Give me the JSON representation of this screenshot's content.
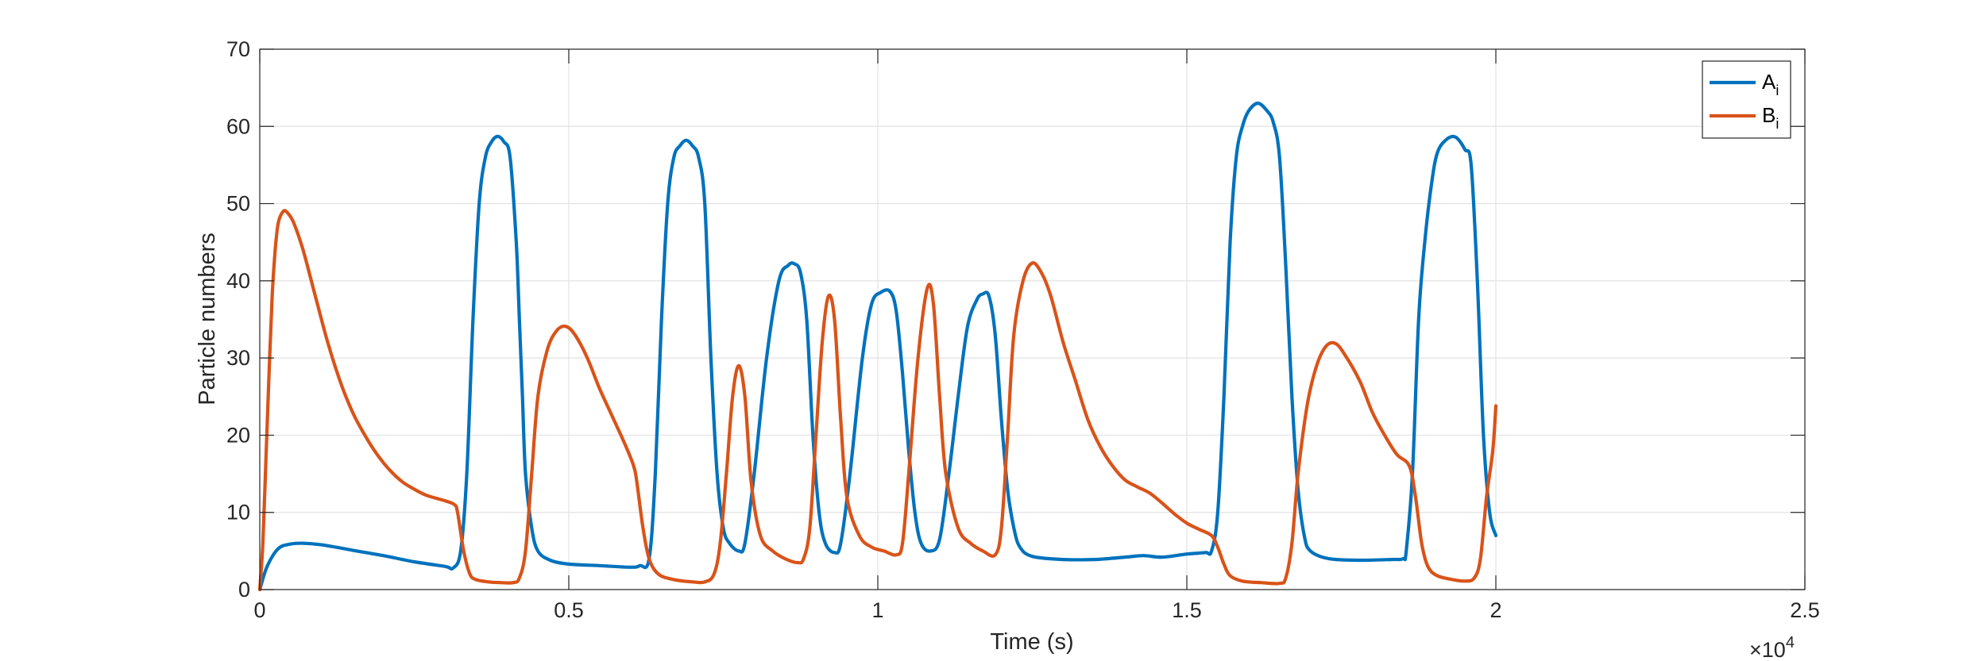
{
  "chart_data": {
    "type": "line",
    "xlabel": "Time (s)",
    "ylabel": "Particle numbers",
    "x_exponent_base": "×10",
    "x_exponent_power": "4",
    "x_scale_factor": 10000,
    "xlim": [
      0,
      25000
    ],
    "ylim": [
      0,
      70
    ],
    "x_ticks": [
      0,
      5000,
      10000,
      15000,
      20000,
      25000
    ],
    "x_tick_labels": [
      "0",
      "0.5",
      "1",
      "1.5",
      "2",
      "2.5"
    ],
    "y_ticks": [
      0,
      10,
      20,
      30,
      40,
      50,
      60,
      70
    ],
    "y_tick_labels": [
      "0",
      "10",
      "20",
      "30",
      "40",
      "50",
      "60",
      "70"
    ],
    "grid": true,
    "legend_position": "top-right",
    "series": [
      {
        "name": "A",
        "subscript": "i",
        "color": "#0072BD",
        "points": [
          [
            0,
            0
          ],
          [
            120,
            3
          ],
          [
            300,
            5.3
          ],
          [
            500,
            5.9
          ],
          [
            700,
            6.0
          ],
          [
            1000,
            5.8
          ],
          [
            1500,
            5.1
          ],
          [
            2000,
            4.4
          ],
          [
            2500,
            3.6
          ],
          [
            3000,
            3.0
          ],
          [
            3130,
            2.8
          ],
          [
            3250,
            5
          ],
          [
            3350,
            15
          ],
          [
            3450,
            35
          ],
          [
            3550,
            50
          ],
          [
            3650,
            56
          ],
          [
            3750,
            58
          ],
          [
            3850,
            58.7
          ],
          [
            3950,
            58
          ],
          [
            4050,
            56
          ],
          [
            4150,
            45
          ],
          [
            4200,
            35
          ],
          [
            4250,
            25
          ],
          [
            4300,
            15
          ],
          [
            4400,
            8
          ],
          [
            4500,
            5
          ],
          [
            4700,
            3.8
          ],
          [
            5000,
            3.3
          ],
          [
            5500,
            3.1
          ],
          [
            6000,
            2.9
          ],
          [
            6150,
            3.1
          ],
          [
            6300,
            4
          ],
          [
            6400,
            15
          ],
          [
            6500,
            35
          ],
          [
            6600,
            50
          ],
          [
            6700,
            56
          ],
          [
            6800,
            57.5
          ],
          [
            6900,
            58.2
          ],
          [
            7000,
            57.5
          ],
          [
            7100,
            56
          ],
          [
            7200,
            50
          ],
          [
            7300,
            30
          ],
          [
            7400,
            15
          ],
          [
            7500,
            8
          ],
          [
            7600,
            6
          ],
          [
            7750,
            5
          ],
          [
            7850,
            6
          ],
          [
            8000,
            15
          ],
          [
            8200,
            30
          ],
          [
            8400,
            40
          ],
          [
            8550,
            42
          ],
          [
            8650,
            42.2
          ],
          [
            8750,
            41
          ],
          [
            8850,
            35
          ],
          [
            8950,
            20
          ],
          [
            9050,
            10
          ],
          [
            9150,
            6
          ],
          [
            9300,
            4.8
          ],
          [
            9400,
            6
          ],
          [
            9550,
            15
          ],
          [
            9750,
            30
          ],
          [
            9900,
            37
          ],
          [
            10050,
            38.5
          ],
          [
            10200,
            38.6
          ],
          [
            10300,
            36
          ],
          [
            10400,
            28
          ],
          [
            10500,
            18
          ],
          [
            10600,
            10
          ],
          [
            10700,
            6
          ],
          [
            10850,
            5
          ],
          [
            11000,
            6.5
          ],
          [
            11150,
            15
          ],
          [
            11300,
            25
          ],
          [
            11450,
            34
          ],
          [
            11600,
            37.5
          ],
          [
            11700,
            38.3
          ],
          [
            11800,
            38
          ],
          [
            11900,
            33
          ],
          [
            12000,
            22
          ],
          [
            12100,
            13
          ],
          [
            12200,
            8
          ],
          [
            12300,
            5.5
          ],
          [
            12500,
            4.3
          ],
          [
            13000,
            3.9
          ],
          [
            13500,
            3.9
          ],
          [
            14000,
            4.2
          ],
          [
            14300,
            4.4
          ],
          [
            14600,
            4.2
          ],
          [
            15000,
            4.6
          ],
          [
            15300,
            4.8
          ],
          [
            15400,
            5
          ],
          [
            15500,
            10
          ],
          [
            15600,
            25
          ],
          [
            15700,
            45
          ],
          [
            15800,
            56
          ],
          [
            15900,
            60
          ],
          [
            16000,
            62
          ],
          [
            16150,
            63
          ],
          [
            16300,
            62
          ],
          [
            16400,
            60.5
          ],
          [
            16500,
            56
          ],
          [
            16600,
            42
          ],
          [
            16700,
            25
          ],
          [
            16800,
            13
          ],
          [
            16900,
            7
          ],
          [
            17000,
            5
          ],
          [
            17300,
            4
          ],
          [
            17800,
            3.8
          ],
          [
            18300,
            3.9
          ],
          [
            18500,
            4
          ],
          [
            18550,
            5
          ],
          [
            18650,
            15
          ],
          [
            18750,
            35
          ],
          [
            18850,
            45
          ],
          [
            18950,
            52
          ],
          [
            19050,
            56.5
          ],
          [
            19200,
            58.3
          ],
          [
            19350,
            58.6
          ],
          [
            19500,
            57
          ],
          [
            19600,
            55
          ],
          [
            19700,
            40
          ],
          [
            19800,
            20
          ],
          [
            19900,
            10
          ],
          [
            20000,
            7
          ]
        ]
      },
      {
        "name": "B",
        "subscript": "i",
        "color": "#D95319",
        "points": [
          [
            0,
            0
          ],
          [
            50,
            6
          ],
          [
            100,
            17
          ],
          [
            150,
            28
          ],
          [
            200,
            38
          ],
          [
            250,
            44
          ],
          [
            300,
            47.5
          ],
          [
            380,
            49
          ],
          [
            450,
            48.8
          ],
          [
            550,
            47.5
          ],
          [
            700,
            44
          ],
          [
            900,
            38
          ],
          [
            1100,
            32
          ],
          [
            1300,
            27
          ],
          [
            1500,
            23
          ],
          [
            1700,
            20
          ],
          [
            1900,
            17.5
          ],
          [
            2100,
            15.5
          ],
          [
            2300,
            14
          ],
          [
            2500,
            13
          ],
          [
            2700,
            12.2
          ],
          [
            3000,
            11.5
          ],
          [
            3150,
            11
          ],
          [
            3200,
            10
          ],
          [
            3300,
            5
          ],
          [
            3400,
            2
          ],
          [
            3500,
            1.3
          ],
          [
            3700,
            1
          ],
          [
            3900,
            0.9
          ],
          [
            4100,
            0.9
          ],
          [
            4200,
            1.5
          ],
          [
            4300,
            5
          ],
          [
            4400,
            15
          ],
          [
            4500,
            25
          ],
          [
            4650,
            31
          ],
          [
            4800,
            33.5
          ],
          [
            4950,
            34.1
          ],
          [
            5100,
            33
          ],
          [
            5300,
            30
          ],
          [
            5500,
            26
          ],
          [
            5700,
            22.5
          ],
          [
            5900,
            19
          ],
          [
            6050,
            16
          ],
          [
            6100,
            14
          ],
          [
            6200,
            8
          ],
          [
            6300,
            4
          ],
          [
            6450,
            2
          ],
          [
            6700,
            1.3
          ],
          [
            7000,
            1
          ],
          [
            7200,
            1
          ],
          [
            7350,
            2
          ],
          [
            7450,
            6
          ],
          [
            7550,
            15
          ],
          [
            7650,
            25
          ],
          [
            7750,
            29
          ],
          [
            7850,
            25
          ],
          [
            7950,
            14
          ],
          [
            8100,
            7
          ],
          [
            8300,
            5
          ],
          [
            8500,
            4
          ],
          [
            8700,
            3.5
          ],
          [
            8800,
            4
          ],
          [
            8900,
            8
          ],
          [
            9000,
            20
          ],
          [
            9100,
            32
          ],
          [
            9200,
            38
          ],
          [
            9300,
            35
          ],
          [
            9400,
            22
          ],
          [
            9500,
            12
          ],
          [
            9700,
            7
          ],
          [
            9900,
            5.5
          ],
          [
            10100,
            5
          ],
          [
            10300,
            4.5
          ],
          [
            10400,
            6
          ],
          [
            10500,
            15
          ],
          [
            10650,
            30
          ],
          [
            10800,
            39
          ],
          [
            10900,
            37
          ],
          [
            11000,
            25
          ],
          [
            11100,
            15
          ],
          [
            11300,
            8
          ],
          [
            11500,
            6
          ],
          [
            11700,
            5
          ],
          [
            11900,
            4.5
          ],
          [
            12000,
            8
          ],
          [
            12100,
            20
          ],
          [
            12200,
            33
          ],
          [
            12350,
            40
          ],
          [
            12500,
            42.3
          ],
          [
            12650,
            41
          ],
          [
            12800,
            38
          ],
          [
            13000,
            32
          ],
          [
            13200,
            27
          ],
          [
            13400,
            22
          ],
          [
            13600,
            18.5
          ],
          [
            13800,
            16
          ],
          [
            14000,
            14.2
          ],
          [
            14200,
            13.3
          ],
          [
            14400,
            12.5
          ],
          [
            14600,
            11.2
          ],
          [
            14800,
            9.8
          ],
          [
            15000,
            8.6
          ],
          [
            15200,
            7.8
          ],
          [
            15400,
            7
          ],
          [
            15500,
            5.5
          ],
          [
            15600,
            3.3
          ],
          [
            15700,
            1.8
          ],
          [
            15900,
            1.1
          ],
          [
            16200,
            0.9
          ],
          [
            16500,
            0.8
          ],
          [
            16600,
            1.5
          ],
          [
            16700,
            6
          ],
          [
            16800,
            15
          ],
          [
            16950,
            24
          ],
          [
            17100,
            29
          ],
          [
            17250,
            31.5
          ],
          [
            17400,
            31.9
          ],
          [
            17550,
            30.5
          ],
          [
            17800,
            27
          ],
          [
            18000,
            23
          ],
          [
            18200,
            20
          ],
          [
            18400,
            17.5
          ],
          [
            18600,
            16
          ],
          [
            18700,
            12
          ],
          [
            18800,
            6
          ],
          [
            18900,
            3
          ],
          [
            19050,
            1.8
          ],
          [
            19300,
            1.3
          ],
          [
            19500,
            1.1
          ],
          [
            19650,
            1.5
          ],
          [
            19750,
            4
          ],
          [
            19850,
            12
          ],
          [
            19950,
            18
          ],
          [
            20000,
            23.8
          ]
        ]
      }
    ]
  }
}
